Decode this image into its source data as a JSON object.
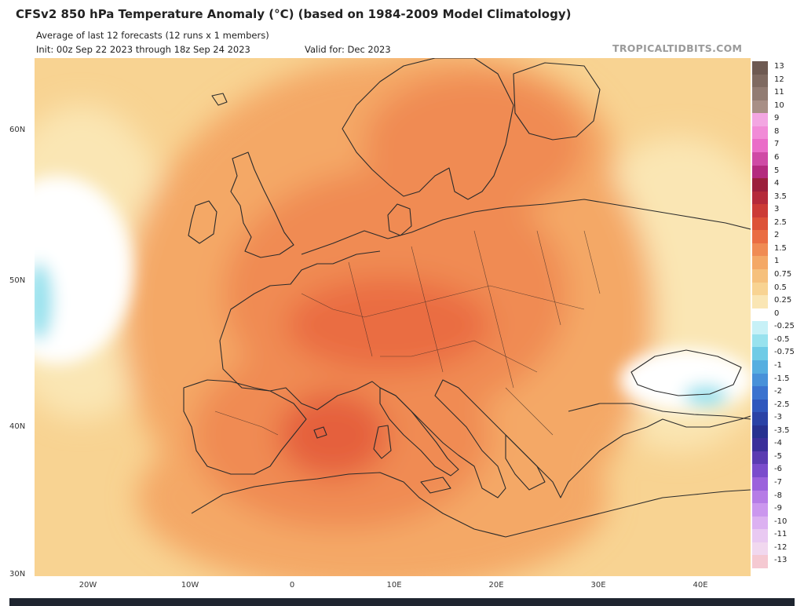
{
  "header": {
    "title": "CFSv2 850 hPa Temperature Anomaly (°C) (based on 1984-2009 Model Climatology)",
    "subtitle": "Average of last 12 forecasts (12 runs x 1 members)",
    "init": "Init: 00z Sep 22 2023 through 18z Sep 24 2023",
    "valid": "Valid for: Dec 2023",
    "brand": "TROPICALTIDBITS.COM"
  },
  "axes": {
    "lat_labels": [
      "60N",
      "50N",
      "40N",
      "30N"
    ],
    "lon_labels": [
      "20W",
      "10W",
      "0",
      "10E",
      "20E",
      "30E",
      "40E"
    ]
  },
  "colorbar": [
    {
      "label": "13",
      "color": "#6e5a52"
    },
    {
      "label": "12",
      "color": "#7f6a61"
    },
    {
      "label": "11",
      "color": "#927c73"
    },
    {
      "label": "10",
      "color": "#a88f86"
    },
    {
      "label": "9",
      "color": "#f3a6e2"
    },
    {
      "label": "8",
      "color": "#f18bd7"
    },
    {
      "label": "7",
      "color": "#ea6dc8"
    },
    {
      "label": "6",
      "color": "#cf4aa5"
    },
    {
      "label": "5",
      "color": "#b42a7e"
    },
    {
      "label": "4",
      "color": "#9c1f3c"
    },
    {
      "label": "3.5",
      "color": "#b52a3a"
    },
    {
      "label": "3",
      "color": "#cc3b36"
    },
    {
      "label": "2.5",
      "color": "#dd5238"
    },
    {
      "label": "2",
      "color": "#ea6d42"
    },
    {
      "label": "1.5",
      "color": "#f08b53"
    },
    {
      "label": "1",
      "color": "#f4a866"
    },
    {
      "label": "0.75",
      "color": "#f6c07c"
    },
    {
      "label": "0.5",
      "color": "#f8d392"
    },
    {
      "label": "0.25",
      "color": "#fae6b4"
    },
    {
      "label": "0",
      "color": "#ffffff"
    },
    {
      "label": "-0.25",
      "color": "#c7f1f7"
    },
    {
      "label": "-0.5",
      "color": "#98e2ee"
    },
    {
      "label": "-0.75",
      "color": "#6fcbe6"
    },
    {
      "label": "-1",
      "color": "#56aee0"
    },
    {
      "label": "-1.5",
      "color": "#4891d9"
    },
    {
      "label": "-2",
      "color": "#3b73cf"
    },
    {
      "label": "-2.5",
      "color": "#2f57bd"
    },
    {
      "label": "-3",
      "color": "#2a42a6"
    },
    {
      "label": "-3.5",
      "color": "#273190"
    },
    {
      "label": "-4",
      "color": "#3b2f9a"
    },
    {
      "label": "-5",
      "color": "#5a3bb2"
    },
    {
      "label": "-6",
      "color": "#7a4ccc"
    },
    {
      "label": "-7",
      "color": "#9b62dc"
    },
    {
      "label": "-8",
      "color": "#b67ce6"
    },
    {
      "label": "-9",
      "color": "#cb97ee"
    },
    {
      "label": "-10",
      "color": "#dcb1f1"
    },
    {
      "label": "-11",
      "color": "#e9c9f2"
    },
    {
      "label": "-12",
      "color": "#f1d8ef"
    },
    {
      "label": "-13",
      "color": "#f5c9d2"
    }
  ]
}
